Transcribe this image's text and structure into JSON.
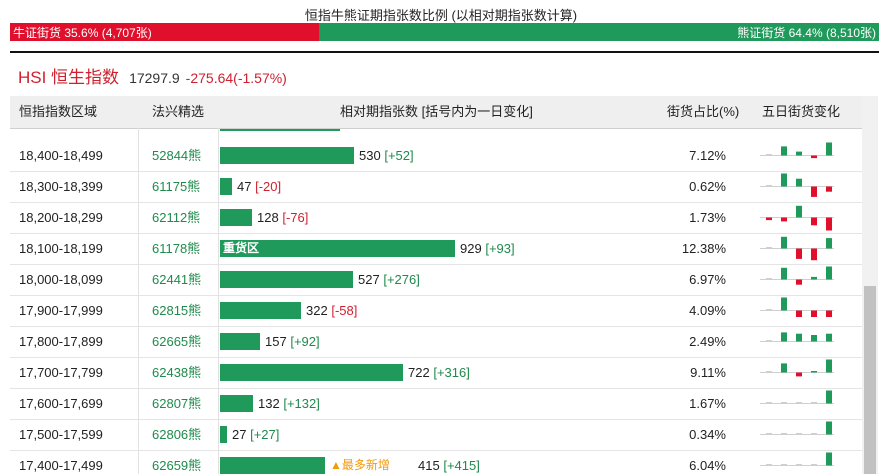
{
  "title": "恒指牛熊证期指张数比例 (以相对期指张数计算)",
  "ratio": {
    "bull_label": "牛证街货 35.6% (4,707张)",
    "bear_label": "熊证街货 64.4% (8,510张)",
    "bull_fraction": 0.356,
    "bull_color": "#e0102d",
    "bear_color": "#1f9a5a"
  },
  "index": {
    "name": "HSI 恒生指数",
    "value": "17297.9",
    "change": "-275.64(-1.57%)"
  },
  "table": {
    "headers": {
      "range": "恒指指数区域",
      "pick": "法兴精选",
      "qty": "相对期指张数 [括号内为一日变化]",
      "pct": "街货占比(%)",
      "trend": "五日街货变化"
    },
    "rows": [
      {
        "range": "18,400-18,499",
        "code": "52844熊",
        "qty": "530",
        "delta": "[+52]",
        "delta_sign": "pos",
        "pct": "7.12%",
        "label": "",
        "new_tag": "",
        "value": 530,
        "trend": [
          {
            "v": 0.0,
            "s": "flat"
          },
          {
            "v": 0.7,
            "s": "up"
          },
          {
            "v": 0.3,
            "s": "up"
          },
          {
            "v": -0.2,
            "s": "down"
          },
          {
            "v": 1.0,
            "s": "up"
          }
        ]
      },
      {
        "range": "18,300-18,399",
        "code": "61175熊",
        "qty": "47",
        "delta": "[-20]",
        "delta_sign": "neg",
        "pct": "0.62%",
        "label": "",
        "new_tag": "",
        "value": 47,
        "trend": [
          {
            "v": 0.0,
            "s": "flat"
          },
          {
            "v": 1.0,
            "s": "up"
          },
          {
            "v": 0.6,
            "s": "up"
          },
          {
            "v": -0.8,
            "s": "down"
          },
          {
            "v": -0.4,
            "s": "down"
          }
        ]
      },
      {
        "range": "18,200-18,299",
        "code": "62112熊",
        "qty": "128",
        "delta": "[-76]",
        "delta_sign": "neg",
        "pct": "1.73%",
        "label": "",
        "new_tag": "",
        "value": 128,
        "trend": [
          {
            "v": -0.2,
            "s": "down"
          },
          {
            "v": -0.3,
            "s": "down"
          },
          {
            "v": 0.9,
            "s": "up"
          },
          {
            "v": -0.6,
            "s": "down"
          },
          {
            "v": -1.0,
            "s": "down"
          }
        ]
      },
      {
        "range": "18,100-18,199",
        "code": "61178熊",
        "qty": "929",
        "delta": "[+93]",
        "delta_sign": "pos",
        "pct": "12.38%",
        "label": "重货区",
        "new_tag": "",
        "value": 929,
        "trend": [
          {
            "v": 0.0,
            "s": "flat"
          },
          {
            "v": 0.9,
            "s": "up"
          },
          {
            "v": -0.8,
            "s": "down"
          },
          {
            "v": -0.9,
            "s": "down"
          },
          {
            "v": 0.8,
            "s": "up"
          }
        ]
      },
      {
        "range": "18,000-18,099",
        "code": "62441熊",
        "qty": "527",
        "delta": "[+276]",
        "delta_sign": "pos",
        "pct": "6.97%",
        "label": "",
        "new_tag": "",
        "value": 527,
        "trend": [
          {
            "v": 0.0,
            "s": "flat"
          },
          {
            "v": 0.9,
            "s": "up"
          },
          {
            "v": -0.4,
            "s": "down"
          },
          {
            "v": 0.2,
            "s": "up"
          },
          {
            "v": 1.0,
            "s": "up"
          }
        ]
      },
      {
        "range": "17,900-17,999",
        "code": "62815熊",
        "qty": "322",
        "delta": "[-58]",
        "delta_sign": "neg",
        "pct": "4.09%",
        "label": "",
        "new_tag": "",
        "value": 322,
        "trend": [
          {
            "v": 0.0,
            "s": "flat"
          },
          {
            "v": 1.0,
            "s": "up"
          },
          {
            "v": -0.5,
            "s": "down"
          },
          {
            "v": -0.5,
            "s": "down"
          },
          {
            "v": -0.5,
            "s": "down"
          }
        ]
      },
      {
        "range": "17,800-17,899",
        "code": "62665熊",
        "qty": "157",
        "delta": "[+92]",
        "delta_sign": "pos",
        "pct": "2.49%",
        "label": "",
        "new_tag": "",
        "value": 157,
        "trend": [
          {
            "v": 0.0,
            "s": "flat"
          },
          {
            "v": 0.7,
            "s": "up"
          },
          {
            "v": 0.6,
            "s": "up"
          },
          {
            "v": 0.5,
            "s": "up"
          },
          {
            "v": 0.6,
            "s": "up"
          }
        ]
      },
      {
        "range": "17,700-17,799",
        "code": "62438熊",
        "qty": "722",
        "delta": "[+316]",
        "delta_sign": "pos",
        "pct": "9.11%",
        "label": "",
        "new_tag": "",
        "value": 722,
        "trend": [
          {
            "v": 0.0,
            "s": "flat"
          },
          {
            "v": 0.7,
            "s": "up"
          },
          {
            "v": -0.3,
            "s": "down"
          },
          {
            "v": 0.1,
            "s": "up"
          },
          {
            "v": 1.0,
            "s": "up"
          }
        ]
      },
      {
        "range": "17,600-17,699",
        "code": "62807熊",
        "qty": "132",
        "delta": "[+132]",
        "delta_sign": "pos",
        "pct": "1.67%",
        "label": "",
        "new_tag": "",
        "value": 132,
        "trend": [
          {
            "v": 0.0,
            "s": "flat"
          },
          {
            "v": 0.0,
            "s": "flat"
          },
          {
            "v": 0.0,
            "s": "flat"
          },
          {
            "v": 0.0,
            "s": "flat"
          },
          {
            "v": 1.0,
            "s": "up"
          }
        ]
      },
      {
        "range": "17,500-17,599",
        "code": "62806熊",
        "qty": "27",
        "delta": "[+27]",
        "delta_sign": "pos",
        "pct": "0.34%",
        "label": "",
        "new_tag": "",
        "value": 27,
        "trend": [
          {
            "v": 0.0,
            "s": "flat"
          },
          {
            "v": 0.0,
            "s": "flat"
          },
          {
            "v": 0.0,
            "s": "flat"
          },
          {
            "v": 0.0,
            "s": "flat"
          },
          {
            "v": 1.0,
            "s": "up"
          }
        ]
      },
      {
        "range": "17,400-17,499",
        "code": "62659熊",
        "qty": "415",
        "delta": "[+415]",
        "delta_sign": "pos",
        "pct": "6.04%",
        "label": "",
        "new_tag": "▲最多新增",
        "value": 415,
        "trend": [
          {
            "v": 0.0,
            "s": "flat"
          },
          {
            "v": 0.0,
            "s": "flat"
          },
          {
            "v": 0.0,
            "s": "flat"
          },
          {
            "v": 0.0,
            "s": "flat"
          },
          {
            "v": 1.0,
            "s": "up"
          }
        ]
      }
    ]
  },
  "colors": {
    "up": "#1f9a5a",
    "down": "#e0102d",
    "link": "#1f8a4c",
    "accent": "#d0202f"
  }
}
